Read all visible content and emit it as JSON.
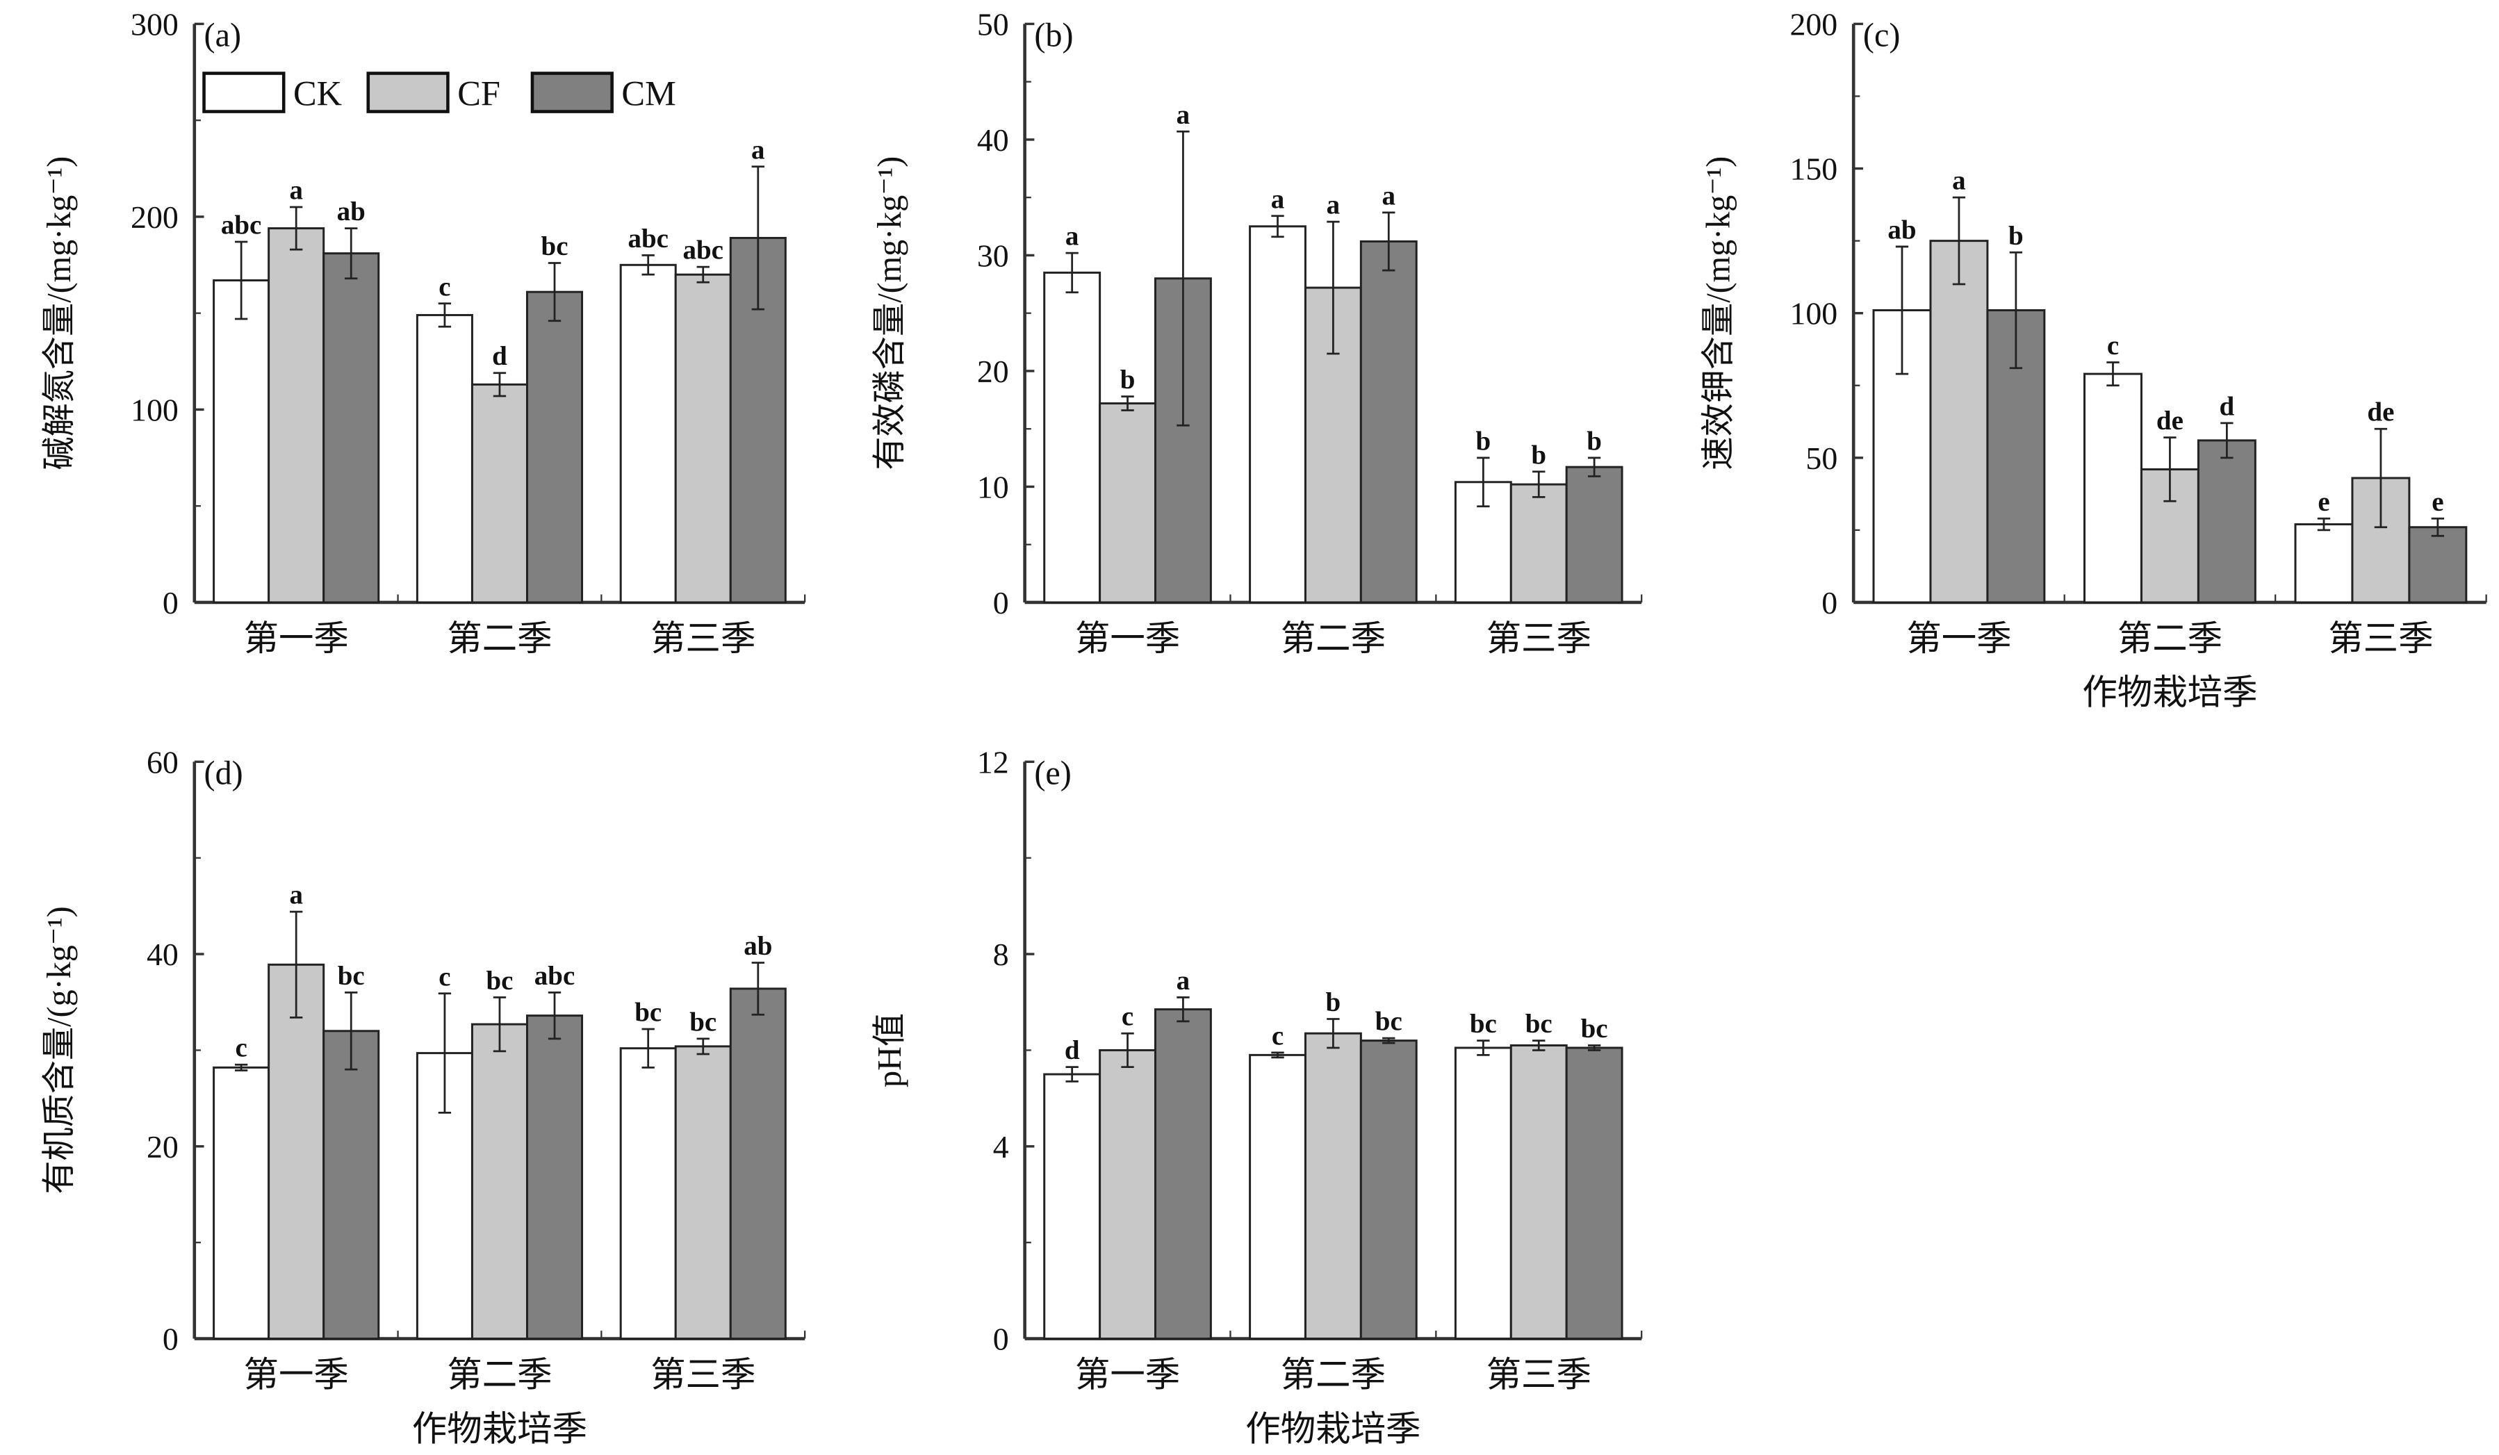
{
  "legend": [
    {
      "name": "CK",
      "color": "#ffffff"
    },
    {
      "name": "CF",
      "color": "#c8c8c8"
    },
    {
      "name": "CM",
      "color": "#808080"
    }
  ],
  "chart_data": [
    {
      "type": "bar",
      "panel": "(a)",
      "ylabel": "碱解氮含量/(mg·kg⁻¹)",
      "xlabel": "",
      "categories": [
        "第一季",
        "第二季",
        "第三季"
      ],
      "ylim": [
        0,
        300
      ],
      "yticks": [
        0,
        100,
        200,
        300
      ],
      "series": [
        {
          "name": "CK",
          "values": [
            167,
            149,
            175
          ],
          "errors": [
            20,
            6,
            5
          ],
          "letters": [
            "abc",
            "c",
            "abc"
          ]
        },
        {
          "name": "CF",
          "values": [
            194,
            113,
            170
          ],
          "errors": [
            11,
            6,
            4
          ],
          "letters": [
            "a",
            "d",
            "abc"
          ]
        },
        {
          "name": "CM",
          "values": [
            181,
            161,
            189
          ],
          "errors": [
            13,
            15,
            37
          ],
          "letters": [
            "ab",
            "bc",
            "a"
          ]
        }
      ]
    },
    {
      "type": "bar",
      "panel": "(b)",
      "ylabel": "有效磷含量/(mg·kg⁻¹)",
      "xlabel": "",
      "categories": [
        "第一季",
        "第二季",
        "第三季"
      ],
      "ylim": [
        0,
        50
      ],
      "yticks": [
        0,
        10,
        20,
        30,
        40,
        50
      ],
      "series": [
        {
          "name": "CK",
          "values": [
            28.5,
            32.5,
            10.4
          ],
          "errors": [
            1.7,
            0.9,
            2.1
          ],
          "letters": [
            "a",
            "a",
            "b"
          ]
        },
        {
          "name": "CF",
          "values": [
            17.2,
            27.2,
            10.2
          ],
          "errors": [
            0.6,
            5.7,
            1.1
          ],
          "letters": [
            "b",
            "a",
            "b"
          ]
        },
        {
          "name": "CM",
          "values": [
            28.0,
            31.2,
            11.7
          ],
          "errors": [
            12.7,
            2.5,
            0.8
          ],
          "letters": [
            "a",
            "a",
            "b"
          ]
        }
      ]
    },
    {
      "type": "bar",
      "panel": "(c)",
      "ylabel": "速效钾含量/(mg·kg⁻¹)",
      "xlabel": "作物栽培季",
      "categories": [
        "第一季",
        "第二季",
        "第三季"
      ],
      "ylim": [
        0,
        200
      ],
      "yticks": [
        0,
        50,
        100,
        150,
        200
      ],
      "series": [
        {
          "name": "CK",
          "values": [
            101,
            79,
            27
          ],
          "errors": [
            22,
            4,
            2
          ],
          "letters": [
            "ab",
            "c",
            "e"
          ]
        },
        {
          "name": "CF",
          "values": [
            125,
            46,
            43
          ],
          "errors": [
            15,
            11,
            17
          ],
          "letters": [
            "a",
            "de",
            "de"
          ]
        },
        {
          "name": "CM",
          "values": [
            101,
            56,
            26
          ],
          "errors": [
            20,
            6,
            3
          ],
          "letters": [
            "b",
            "d",
            "e"
          ]
        }
      ]
    },
    {
      "type": "bar",
      "panel": "(d)",
      "ylabel": "有机质含量/(g·kg⁻¹)",
      "xlabel": "作物栽培季",
      "categories": [
        "第一季",
        "第二季",
        "第三季"
      ],
      "ylim": [
        0,
        60
      ],
      "yticks": [
        0,
        20,
        40,
        60
      ],
      "series": [
        {
          "name": "CK",
          "values": [
            28.2,
            29.7,
            30.2
          ],
          "errors": [
            0.3,
            6.2,
            2.0
          ],
          "letters": [
            "c",
            "c",
            "bc"
          ]
        },
        {
          "name": "CF",
          "values": [
            38.9,
            32.7,
            30.4
          ],
          "errors": [
            5.5,
            2.8,
            0.8
          ],
          "letters": [
            "a",
            "bc",
            "bc"
          ]
        },
        {
          "name": "CM",
          "values": [
            32.0,
            33.6,
            36.4
          ],
          "errors": [
            4.0,
            2.4,
            2.7
          ],
          "letters": [
            "bc",
            "abc",
            "ab"
          ]
        }
      ]
    },
    {
      "type": "bar",
      "panel": "(e)",
      "ylabel": "pH值",
      "xlabel": "作物栽培季",
      "categories": [
        "第一季",
        "第二季",
        "第三季"
      ],
      "ylim": [
        0,
        12
      ],
      "yticks": [
        0,
        4,
        8,
        12
      ],
      "series": [
        {
          "name": "CK",
          "values": [
            5.5,
            5.9,
            6.05
          ],
          "errors": [
            0.15,
            0.05,
            0.15
          ],
          "letters": [
            "d",
            "c",
            "bc"
          ]
        },
        {
          "name": "CF",
          "values": [
            6.0,
            6.35,
            6.1
          ],
          "errors": [
            0.35,
            0.3,
            0.1
          ],
          "letters": [
            "c",
            "b",
            "bc"
          ]
        },
        {
          "name": "CM",
          "values": [
            6.85,
            6.2,
            6.05
          ],
          "errors": [
            0.25,
            0.05,
            0.05
          ],
          "letters": [
            "a",
            "bc",
            "bc"
          ]
        }
      ]
    }
  ]
}
